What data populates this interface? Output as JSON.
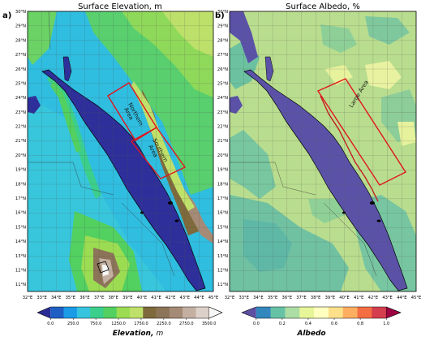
{
  "panels": [
    {
      "id": "a",
      "label": "a)",
      "title": "Surface Elevation, m",
      "x_ticks": [
        "32°E",
        "33°E",
        "34°E",
        "35°E",
        "36°E",
        "37°E",
        "38°E",
        "39°E",
        "40°E",
        "41°E",
        "42°E",
        "43°E",
        "44°E",
        "45°E"
      ],
      "y_ticks": [
        "30°N",
        "29°N",
        "28°N",
        "27°N",
        "26°N",
        "25°N",
        "24°N",
        "23°N",
        "22°N",
        "21°N",
        "20°N",
        "19°N",
        "18°N",
        "17°N",
        "16°N",
        "15°N",
        "14°N",
        "13°N",
        "12°N",
        "11°N"
      ],
      "boxes": [
        "Northern Area",
        "Southern Area"
      ],
      "colorbar": {
        "label": "Elevation,",
        "unit": "m",
        "ticks": [
          "0.0",
          "250.0",
          "750.0",
          "1250.0",
          "1750.0",
          "2250.0",
          "2750.0",
          "3500.0"
        ],
        "colors": [
          "#2c2c96",
          "#1f5fc4",
          "#1a9be6",
          "#36c4de",
          "#3ccf8c",
          "#52d060",
          "#9bdc52",
          "#bfe06a",
          "#7e6a3c",
          "#8c7458",
          "#a58b76",
          "#c3b0a2",
          "#ddd0c8",
          "#f7f7f7"
        ]
      }
    },
    {
      "id": "b",
      "label": "b)",
      "title": "Surface Albedo, %",
      "x_ticks": [
        "32°E",
        "33°E",
        "34°E",
        "35°E",
        "36°E",
        "37°E",
        "38°E",
        "39°E",
        "40°E",
        "41°E",
        "42°E",
        "43°E",
        "44°E",
        "45°E"
      ],
      "y_ticks": [
        "30°N",
        "29°N",
        "28°N",
        "27°N",
        "26°N",
        "25°N",
        "24°N",
        "23°N",
        "22°N",
        "21°N",
        "20°N",
        "19°N",
        "18°N",
        "17°N",
        "16°N",
        "15°N",
        "14°N",
        "13°N",
        "12°N",
        "11°N"
      ],
      "boxes": [
        "Large Area"
      ],
      "colorbar": {
        "label": "Albedo",
        "unit": "",
        "ticks": [
          "0.0",
          "0.2",
          "0.4",
          "0.6",
          "0.8",
          "1.0"
        ],
        "colors": [
          "#5e4fa2",
          "#3288bd",
          "#66c2a5",
          "#abdda4",
          "#e6f598",
          "#ffffbf",
          "#fee08b",
          "#fdae61",
          "#f46d43",
          "#d53e4f",
          "#9e0142"
        ]
      }
    }
  ],
  "colors": {
    "box_outline": "#e0161e",
    "coastline": "#000000",
    "sea_elevation": "#2e2f9a",
    "sea_albedo": "#5b52a8",
    "land_albedo": "#b9dd8e"
  }
}
